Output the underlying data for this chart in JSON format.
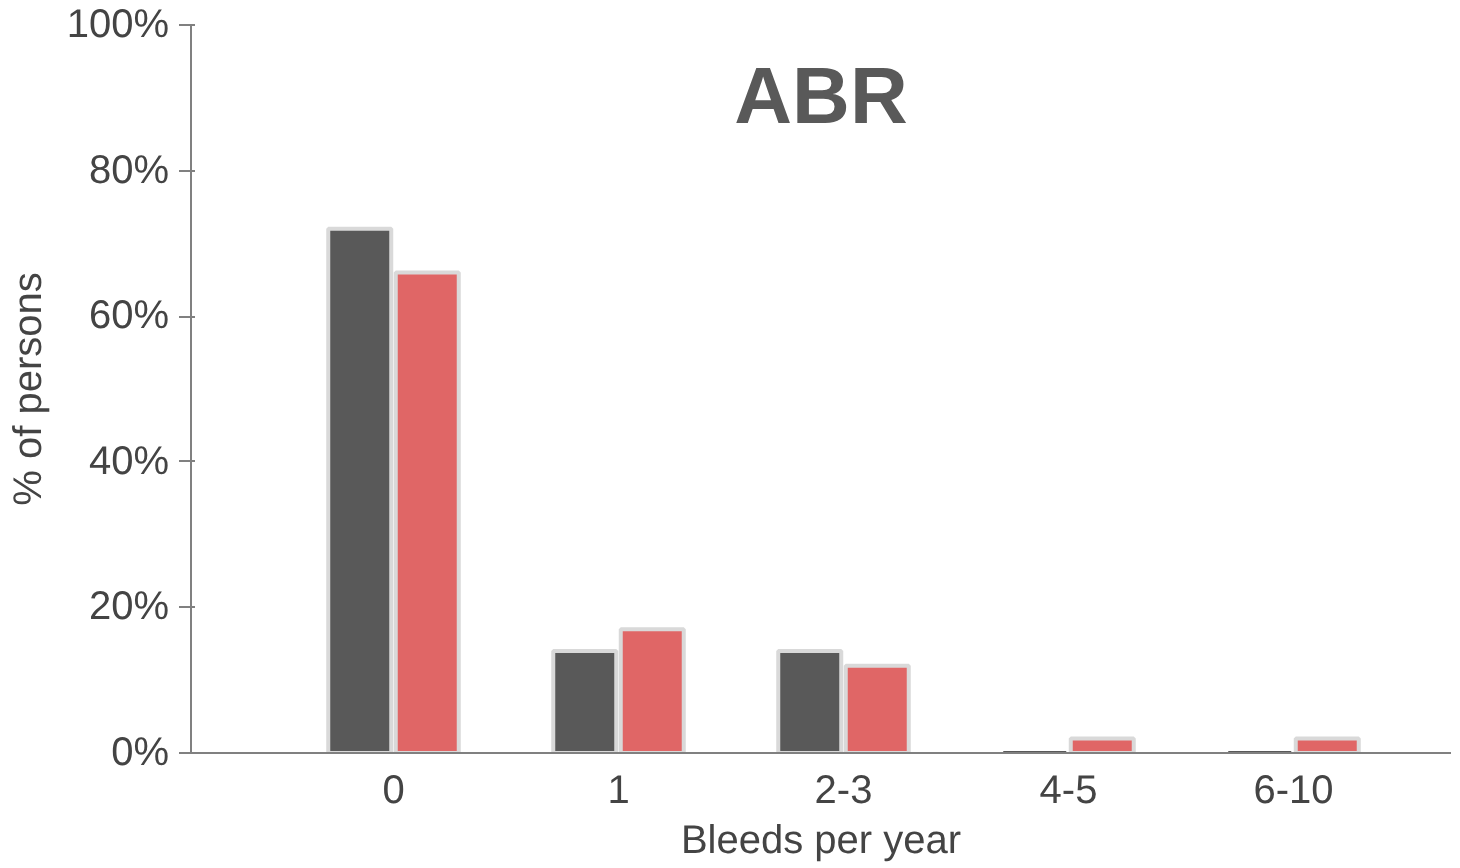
{
  "chart_data": {
    "type": "bar",
    "title": "ABR",
    "xlabel": "Bleeds per year",
    "ylabel": "% of persons",
    "categories": [
      "0",
      "1",
      "2-3",
      "4-5",
      "6-10"
    ],
    "series": [
      {
        "color": "#595959",
        "values": [
          72,
          14,
          14,
          0,
          0
        ]
      },
      {
        "color": "#e06666",
        "values": [
          66,
          17,
          12,
          2,
          2
        ]
      }
    ],
    "ylim": [
      0,
      100
    ],
    "yticks": [
      {
        "value": 0,
        "label": "0%"
      },
      {
        "value": 20,
        "label": "20%"
      },
      {
        "value": 40,
        "label": "40%"
      },
      {
        "value": 60,
        "label": "60%"
      },
      {
        "value": 80,
        "label": "80%"
      },
      {
        "value": 100,
        "label": "100%"
      }
    ],
    "grid": false
  }
}
